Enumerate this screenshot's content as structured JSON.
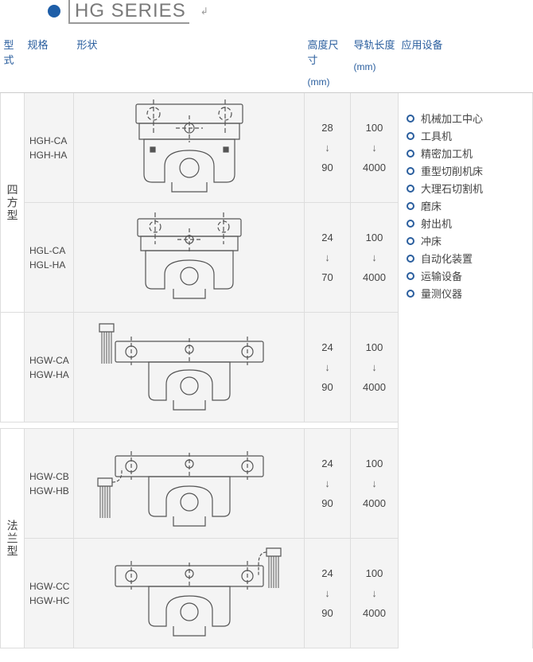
{
  "title": "HG SERIES",
  "headers": {
    "type": "型式",
    "spec": "规格",
    "shape": "形状",
    "height": "高度尺寸",
    "height_unit": "(mm)",
    "rail": "导轨长度",
    "rail_unit": "(mm)",
    "apps": "应用设备"
  },
  "type_labels": {
    "square": "四方型",
    "flange": "法兰型"
  },
  "rows": [
    {
      "spec1": "HGH-CA",
      "spec2": "HGH-HA",
      "h_min": "28",
      "h_max": "90",
      "r_min": "100",
      "r_max": "4000"
    },
    {
      "spec1": "HGL-CA",
      "spec2": "HGL-HA",
      "h_min": "24",
      "h_max": "70",
      "r_min": "100",
      "r_max": "4000"
    },
    {
      "spec1": "HGW-CA",
      "spec2": "HGW-HA",
      "h_min": "24",
      "h_max": "90",
      "r_min": "100",
      "r_max": "4000"
    },
    {
      "spec1": "HGW-CB",
      "spec2": "HGW-HB",
      "h_min": "24",
      "h_max": "90",
      "r_min": "100",
      "r_max": "4000"
    },
    {
      "spec1": "HGW-CC",
      "spec2": "HGW-HC",
      "h_min": "24",
      "h_max": "90",
      "r_min": "100",
      "r_max": "4000"
    }
  ],
  "applications": [
    "机械加工中心",
    "工具机",
    "精密加工机",
    "重型切削机床",
    "大理石切割机",
    "磨床",
    "射出机",
    "冲床",
    "自动化装置",
    "运输设备",
    "量测仪器"
  ],
  "colors": {
    "accent": "#2a5e9e",
    "diagram_stroke": "#555555",
    "row_bg": "#f4f4f4"
  }
}
